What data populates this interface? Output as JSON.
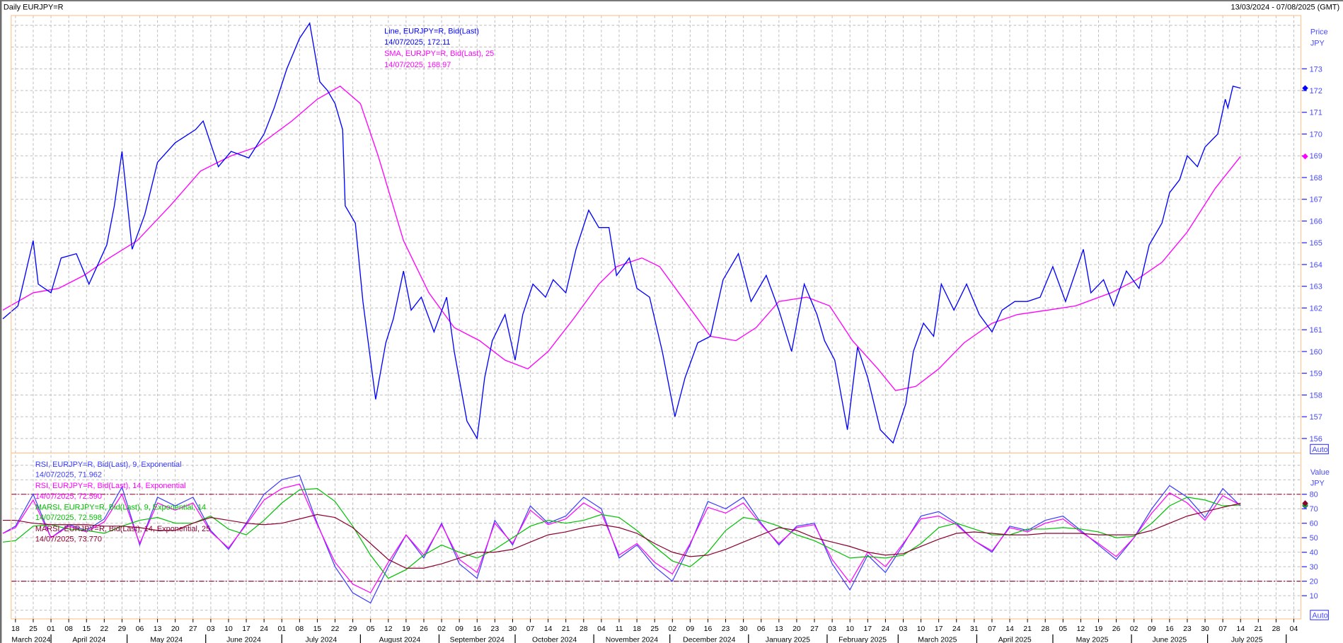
{
  "header": {
    "title": "Daily EURJPY=R",
    "date_range": "13/03/2024 - 07/08/2025 (GMT)"
  },
  "colors": {
    "price_line": "#0000ff",
    "sma": "#ff00ff",
    "rsi9": "#3c3cff",
    "rsi14": "#ff00ff",
    "marsi9": "#00c000",
    "marsi14": "#8b0030",
    "reference_lines": "#8b0030",
    "plot_border": "#ffc896",
    "grid": "#bdbdbd",
    "axis_text": "#4a4aff"
  },
  "chart_data": [
    {
      "type": "line",
      "panel": "price",
      "axis_title": "Price",
      "axis_unit": "JPY",
      "auto_label": "Auto",
      "ylim": [
        155.7,
        175.6
      ],
      "yticks": [
        156,
        157,
        158,
        159,
        160,
        161,
        162,
        163,
        164,
        165,
        166,
        167,
        168,
        169,
        170,
        171,
        172,
        173
      ],
      "grid": true,
      "legend": [
        {
          "text": "Line, EURJPY=R, Bid(Last)",
          "color": "#0000ff"
        },
        {
          "text": "14/07/2025, 172.11",
          "color": "#0000ff"
        },
        {
          "text": "SMA, EURJPY=R, Bid(Last),  25",
          "color": "#ff00ff"
        },
        {
          "text": "14/07/2025, 168.97",
          "color": "#ff00ff"
        }
      ],
      "series": [
        {
          "name": "Line, EURJPY=R, Bid(Last)",
          "color": "#0000ff",
          "last_value": 172.11,
          "x": [
            "2024-03-13",
            "2024-03-19",
            "2024-03-25",
            "2024-03-27",
            "2024-04-01",
            "2024-04-05",
            "2024-04-11",
            "2024-04-16",
            "2024-04-23",
            "2024-04-26",
            "2024-04-29",
            "2024-05-03",
            "2024-05-08",
            "2024-05-13",
            "2024-05-20",
            "2024-05-28",
            "2024-05-31",
            "2024-06-06",
            "2024-06-11",
            "2024-06-18",
            "2024-06-24",
            "2024-06-28",
            "2024-07-03",
            "2024-07-08",
            "2024-07-12",
            "2024-07-16",
            "2024-07-19",
            "2024-07-22",
            "2024-07-25",
            "2024-07-26",
            "2024-07-30",
            "2024-08-02",
            "2024-08-07",
            "2024-08-11",
            "2024-08-14",
            "2024-08-18",
            "2024-08-21",
            "2024-08-25",
            "2024-08-30",
            "2024-09-04",
            "2024-09-07",
            "2024-09-12",
            "2024-09-16",
            "2024-09-19",
            "2024-09-22",
            "2024-09-27",
            "2024-10-01",
            "2024-10-04",
            "2024-10-08",
            "2024-10-13",
            "2024-10-16",
            "2024-10-21",
            "2024-10-25",
            "2024-10-30",
            "2024-11-03",
            "2024-11-07",
            "2024-11-10",
            "2024-11-15",
            "2024-11-18",
            "2024-11-23",
            "2024-11-28",
            "2024-12-03",
            "2024-12-07",
            "2024-12-12",
            "2024-12-17",
            "2024-12-22",
            "2024-12-28",
            "2025-01-02",
            "2025-01-08",
            "2025-01-13",
            "2025-01-18",
            "2025-01-23",
            "2025-01-28",
            "2025-01-31",
            "2025-02-04",
            "2025-02-09",
            "2025-02-13",
            "2025-02-17",
            "2025-02-22",
            "2025-02-27",
            "2025-03-04",
            "2025-03-07",
            "2025-03-11",
            "2025-03-15",
            "2025-03-18",
            "2025-03-23",
            "2025-03-28",
            "2025-04-02",
            "2025-04-07",
            "2025-04-11",
            "2025-04-16",
            "2025-04-21",
            "2025-04-26",
            "2025-05-01",
            "2025-05-06",
            "2025-05-13",
            "2025-05-16",
            "2025-05-21",
            "2025-05-25",
            "2025-05-30",
            "2025-06-04",
            "2025-06-08",
            "2025-06-13",
            "2025-06-16",
            "2025-06-20",
            "2025-06-23",
            "2025-06-27",
            "2025-06-30",
            "2025-07-05",
            "2025-07-08",
            "2025-07-09",
            "2025-07-11",
            "2025-07-14"
          ],
          "y": [
            161.5,
            162.1,
            165.1,
            163.1,
            162.7,
            164.3,
            164.5,
            163.1,
            164.9,
            166.7,
            169.2,
            164.7,
            166.3,
            168.7,
            169.6,
            170.2,
            170.6,
            168.5,
            169.2,
            168.9,
            170.0,
            171.2,
            173.0,
            174.4,
            175.1,
            172.4,
            172.0,
            171.4,
            170.2,
            166.7,
            165.9,
            162.3,
            157.8,
            160.4,
            161.5,
            163.7,
            161.9,
            162.5,
            160.9,
            162.5,
            160.0,
            156.8,
            156.0,
            158.8,
            160.5,
            161.7,
            159.6,
            161.7,
            163.1,
            162.5,
            163.3,
            162.7,
            164.7,
            166.5,
            165.7,
            165.7,
            163.5,
            164.3,
            162.9,
            162.5,
            160.0,
            157.0,
            158.8,
            160.4,
            160.7,
            163.3,
            164.5,
            162.3,
            163.5,
            161.9,
            160.0,
            163.1,
            161.7,
            160.5,
            159.6,
            156.4,
            160.2,
            158.8,
            156.4,
            155.8,
            157.6,
            160.0,
            161.3,
            160.7,
            163.1,
            161.9,
            163.1,
            161.7,
            160.9,
            161.9,
            162.3,
            162.3,
            162.5,
            163.9,
            162.3,
            164.7,
            162.7,
            163.3,
            162.1,
            163.7,
            162.9,
            164.9,
            165.9,
            167.3,
            167.9,
            169.0,
            168.5,
            169.4,
            170.0,
            171.6,
            171.2,
            172.2,
            172.11
          ]
        },
        {
          "name": "SMA, EURJPY=R, Bid(Last),  25",
          "color": "#ff00ff",
          "last_value": 168.97,
          "x": [
            "2024-03-13",
            "2024-03-25",
            "2024-04-04",
            "2024-04-14",
            "2024-04-24",
            "2024-05-05",
            "2024-05-18",
            "2024-05-30",
            "2024-06-11",
            "2024-06-21",
            "2024-07-05",
            "2024-07-15",
            "2024-07-24",
            "2024-08-01",
            "2024-08-08",
            "2024-08-18",
            "2024-08-28",
            "2024-09-07",
            "2024-09-17",
            "2024-09-27",
            "2024-10-06",
            "2024-10-14",
            "2024-10-24",
            "2024-11-03",
            "2024-11-10",
            "2024-11-20",
            "2024-11-27",
            "2024-12-07",
            "2024-12-17",
            "2024-12-27",
            "2025-01-04",
            "2025-01-13",
            "2025-01-24",
            "2025-02-02",
            "2025-02-11",
            "2025-02-21",
            "2025-02-28",
            "2025-03-08",
            "2025-03-17",
            "2025-03-27",
            "2025-04-07",
            "2025-04-17",
            "2025-04-29",
            "2025-05-10",
            "2025-05-24",
            "2025-06-03",
            "2025-06-13",
            "2025-06-23",
            "2025-07-04",
            "2025-07-14"
          ],
          "y": [
            161.9,
            162.7,
            162.9,
            163.5,
            164.3,
            165.1,
            166.7,
            168.3,
            169.0,
            169.4,
            170.6,
            171.6,
            172.2,
            171.4,
            169.0,
            165.1,
            162.7,
            161.1,
            160.5,
            159.6,
            159.2,
            160.0,
            161.5,
            163.1,
            163.9,
            164.3,
            163.9,
            162.3,
            160.7,
            160.5,
            161.1,
            162.3,
            162.5,
            162.1,
            160.5,
            159.2,
            158.2,
            158.4,
            159.2,
            160.4,
            161.3,
            161.7,
            161.9,
            162.1,
            162.7,
            163.3,
            164.1,
            165.5,
            167.5,
            168.97
          ]
        }
      ]
    },
    {
      "type": "line",
      "panel": "indicators",
      "axis_title": "Value",
      "axis_unit": "JPY",
      "auto_label": "Auto",
      "ylim": [
        -5,
        105
      ],
      "yticks": [
        10,
        20,
        30,
        40,
        50,
        60,
        70,
        80
      ],
      "reference_lines": [
        80,
        20
      ],
      "grid": true,
      "legend": [
        {
          "text": "RSI, EURJPY=R, Bid(Last),  9, Exponential",
          "color": "#3c3cff"
        },
        {
          "text": "14/07/2025, 71.962",
          "color": "#3c3cff"
        },
        {
          "text": "RSI, EURJPY=R, Bid(Last),  14, Exponential",
          "color": "#ff00ff"
        },
        {
          "text": "14/07/2025, 72.590",
          "color": "#ff00ff"
        },
        {
          "text": "MARSI, EURJPY=R, Bid(Last),  9, Exponential, 14",
          "color": "#00c000"
        },
        {
          "text": "14/07/2025, 72.598",
          "color": "#00c000"
        },
        {
          "text": "MARSI, EURJPY=R, Bid(Last),  14, Exponential, 25",
          "color": "#8b0030"
        },
        {
          "text": "14/07/2025, 73.770",
          "color": "#8b0030"
        }
      ],
      "x": [
        "2024-03-13",
        "2024-03-18",
        "2024-03-25",
        "2024-04-01",
        "2024-04-08",
        "2024-04-15",
        "2024-04-22",
        "2024-04-29",
        "2024-05-06",
        "2024-05-13",
        "2024-05-20",
        "2024-05-27",
        "2024-06-03",
        "2024-06-10",
        "2024-06-17",
        "2024-06-24",
        "2024-07-01",
        "2024-07-08",
        "2024-07-15",
        "2024-07-22",
        "2024-07-29",
        "2024-08-05",
        "2024-08-12",
        "2024-08-19",
        "2024-08-26",
        "2024-09-02",
        "2024-09-09",
        "2024-09-16",
        "2024-09-23",
        "2024-09-30",
        "2024-10-07",
        "2024-10-14",
        "2024-10-21",
        "2024-10-28",
        "2024-11-04",
        "2024-11-11",
        "2024-11-18",
        "2024-11-25",
        "2024-12-02",
        "2024-12-09",
        "2024-12-16",
        "2024-12-23",
        "2024-12-30",
        "2025-01-06",
        "2025-01-13",
        "2025-01-20",
        "2025-01-27",
        "2025-02-03",
        "2025-02-10",
        "2025-02-17",
        "2025-02-24",
        "2025-03-03",
        "2025-03-10",
        "2025-03-17",
        "2025-03-24",
        "2025-03-31",
        "2025-04-07",
        "2025-04-14",
        "2025-04-21",
        "2025-04-28",
        "2025-05-05",
        "2025-05-12",
        "2025-05-19",
        "2025-05-26",
        "2025-06-02",
        "2025-06-09",
        "2025-06-16",
        "2025-06-23",
        "2025-06-30",
        "2025-07-07",
        "2025-07-14"
      ],
      "series": [
        {
          "name": "RSI, EURJPY=R, Bid(Last),  9, Exponential",
          "color": "#3c3cff",
          "last_value": 71.962,
          "y": [
            53,
            58,
            80,
            50,
            59,
            55,
            63,
            85,
            45,
            78,
            72,
            78,
            55,
            42,
            60,
            80,
            90,
            93,
            60,
            30,
            12,
            5,
            30,
            52,
            36,
            60,
            32,
            22,
            62,
            45,
            72,
            60,
            65,
            78,
            70,
            36,
            45,
            30,
            20,
            45,
            75,
            70,
            78,
            60,
            45,
            58,
            60,
            32,
            14,
            38,
            26,
            45,
            65,
            68,
            60,
            48,
            40,
            58,
            55,
            62,
            65,
            55,
            45,
            35,
            50,
            70,
            86,
            78,
            64,
            84,
            71.962
          ]
        },
        {
          "name": "RSI, EURJPY=R, Bid(Last),  14, Exponential",
          "color": "#ff00ff",
          "last_value": 72.59,
          "y": [
            53,
            57,
            76,
            50,
            58,
            54,
            61,
            80,
            46,
            74,
            69,
            74,
            54,
            43,
            59,
            76,
            84,
            87,
            59,
            33,
            18,
            12,
            33,
            52,
            38,
            59,
            35,
            26,
            60,
            46,
            69,
            59,
            63,
            74,
            67,
            38,
            46,
            33,
            25,
            46,
            71,
            67,
            74,
            59,
            46,
            57,
            59,
            35,
            19,
            40,
            30,
            46,
            63,
            65,
            59,
            48,
            41,
            57,
            54,
            60,
            63,
            54,
            46,
            37,
            50,
            67,
            81,
            74,
            62,
            79,
            72.59
          ]
        },
        {
          "name": "MARSI, EURJPY=R, Bid(Last),  9, Exponential, 14",
          "color": "#00c000",
          "last_value": 72.598,
          "y": [
            47,
            48,
            58,
            59,
            56,
            55,
            53,
            58,
            62,
            64,
            60,
            60,
            65,
            56,
            52,
            62,
            74,
            83,
            84,
            75,
            58,
            38,
            22,
            28,
            38,
            45,
            40,
            36,
            42,
            50,
            58,
            62,
            60,
            62,
            66,
            64,
            55,
            44,
            34,
            30,
            40,
            55,
            64,
            62,
            58,
            52,
            48,
            42,
            36,
            37,
            36,
            38,
            46,
            57,
            60,
            56,
            52,
            52,
            56,
            56,
            57,
            56,
            54,
            50,
            51,
            60,
            72,
            78,
            76,
            72,
            72.598
          ]
        },
        {
          "name": "MARSI, EURJPY=R, Bid(Last),  14, Exponential, 25",
          "color": "#8b0030",
          "last_value": 73.77,
          "y": [
            62,
            62,
            60,
            59,
            59,
            59,
            58,
            58,
            57,
            55,
            55,
            60,
            64,
            62,
            60,
            59,
            60,
            63,
            66,
            64,
            57,
            46,
            35,
            29,
            29,
            32,
            36,
            40,
            40,
            42,
            47,
            52,
            54,
            57,
            59,
            57,
            53,
            46,
            40,
            37,
            38,
            42,
            47,
            52,
            57,
            55,
            50,
            47,
            44,
            40,
            38,
            39,
            44,
            49,
            53,
            54,
            53,
            52,
            52,
            53,
            53,
            53,
            52,
            52,
            52,
            55,
            60,
            65,
            68,
            71,
            73.77
          ]
        }
      ]
    }
  ],
  "x_axis": {
    "day_labels": [
      "18",
      "25",
      "01",
      "08",
      "15",
      "22",
      "29",
      "06",
      "13",
      "20",
      "27",
      "03",
      "10",
      "17",
      "24",
      "01",
      "08",
      "15",
      "22",
      "29",
      "05",
      "12",
      "19",
      "26",
      "02",
      "09",
      "16",
      "23",
      "30",
      "07",
      "14",
      "21",
      "28",
      "04",
      "11",
      "18",
      "25",
      "02",
      "09",
      "16",
      "23",
      "30",
      "06",
      "13",
      "20",
      "27",
      "03",
      "10",
      "17",
      "24",
      "03",
      "10",
      "17",
      "24",
      "31",
      "07",
      "14",
      "21",
      "28",
      "05",
      "12",
      "19",
      "26",
      "02",
      "09",
      "16",
      "23",
      "30",
      "07",
      "14",
      "21",
      "28",
      "04"
    ],
    "month_labels": [
      "March 2024",
      "April 2024",
      "May 2024",
      "June 2024",
      "July 2024",
      "August 2024",
      "September 2024",
      "October 2024",
      "November 2024",
      "December 2024",
      "January 2025",
      "February 2025",
      "March 2025",
      "April 2025",
      "May 2025",
      "June 2025",
      "July 2025"
    ]
  }
}
